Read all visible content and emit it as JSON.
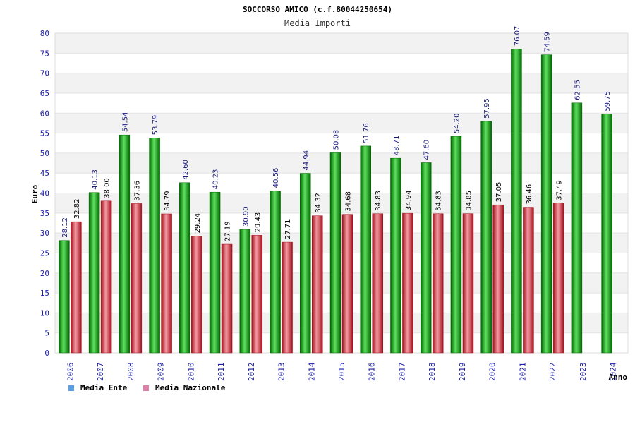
{
  "colors": {
    "ente": "#10b010",
    "ente_dark": "#006600",
    "ente_light": "#5fe05f",
    "nazionale": "#e02a3a",
    "nazionale_dark": "#a0101c",
    "nazionale_light": "#f59aa2",
    "legend_ente": "#5aa0e6",
    "legend_nazionale": "#e080a8",
    "band": "#f2f2f2",
    "tick_text": "#1a1aa6"
  },
  "chart_data": {
    "type": "bar",
    "title": "SOCCORSO AMICO (c.f.80044250654)",
    "subtitle": "Media Importi",
    "xlabel": "Anno",
    "ylabel": "Euro",
    "ylim": [
      0,
      80
    ],
    "y_ticks": [
      0,
      5,
      10,
      15,
      20,
      25,
      30,
      35,
      40,
      45,
      50,
      55,
      60,
      65,
      70,
      75,
      80
    ],
    "grid": true,
    "legend_placement": "bottom-left",
    "categories": [
      "2006",
      "2007",
      "2008",
      "2009",
      "2010",
      "2011",
      "2012",
      "2013",
      "2014",
      "2015",
      "2016",
      "2017",
      "2018",
      "2019",
      "2020",
      "2021",
      "2022",
      "2023",
      "2024"
    ],
    "series": [
      {
        "name": "Media Ente",
        "values": [
          28.12,
          40.13,
          54.54,
          53.79,
          42.6,
          40.23,
          30.9,
          40.56,
          44.94,
          50.08,
          51.76,
          48.71,
          47.6,
          54.2,
          57.95,
          76.07,
          74.59,
          62.55,
          59.75
        ],
        "labels": [
          "28.12",
          "40.13",
          "54.54",
          "53.79",
          "42.60",
          "40.23",
          "30.90",
          "40.56",
          "44.94",
          "50.08",
          "51.76",
          "48.71",
          "47.60",
          "54.20",
          "57.95",
          "76.07",
          "74.59",
          "62.55",
          "59.75"
        ]
      },
      {
        "name": "Media Nazionale",
        "values": [
          32.82,
          38.0,
          37.36,
          34.79,
          29.24,
          27.19,
          29.43,
          27.71,
          34.32,
          34.68,
          34.83,
          34.94,
          34.83,
          34.85,
          37.05,
          36.46,
          37.49,
          null,
          null
        ],
        "labels": [
          "32.82",
          "38.00",
          "37.36",
          "34.79",
          "29.24",
          "27.19",
          "29.43",
          "27.71",
          "34.32",
          "34.68",
          "34.83",
          "34.94",
          "34.83",
          "34.85",
          "37.05",
          "36.46",
          "37.49",
          "",
          ""
        ]
      }
    ]
  }
}
